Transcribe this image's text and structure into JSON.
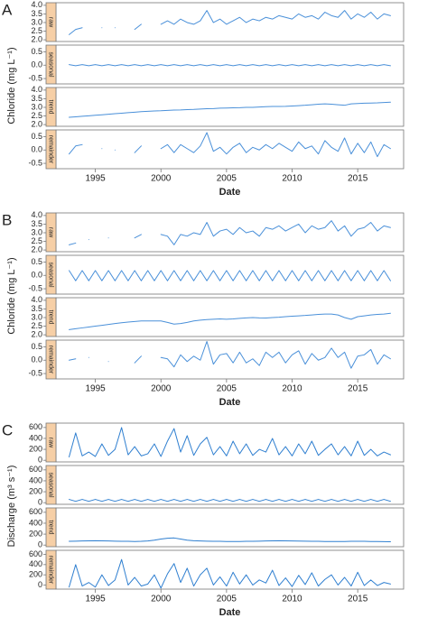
{
  "chart_data": [
    {
      "type": "line",
      "panel_label": "A",
      "ylabel": "Chloride (mg L⁻¹)",
      "xlabel": "Date",
      "x": [
        1993,
        1993.5,
        1994,
        1994.5,
        1995,
        1995.5,
        1996,
        1996.5,
        1997,
        1997.5,
        1998,
        1998.5,
        1999,
        1999.5,
        2000,
        2000.5,
        2001,
        2001.5,
        2002,
        2002.5,
        2003,
        2003.5,
        2004,
        2004.5,
        2005,
        2005.5,
        2006,
        2006.5,
        2007,
        2007.5,
        2008,
        2008.5,
        2009,
        2009.5,
        2010,
        2010.5,
        2011,
        2011.5,
        2012,
        2012.5,
        2013,
        2013.5,
        2014,
        2014.5,
        2015,
        2015.5,
        2016,
        2016.5,
        2017,
        2017.5
      ],
      "xlim": [
        1992,
        2018.5
      ],
      "xticks": [
        1995,
        2000,
        2005,
        2010,
        2015
      ],
      "series": [
        {
          "name": "raw",
          "color": "#4a90d9",
          "ylim": [
            1.9,
            4.15
          ],
          "yticks": [
            {
              "value": 2,
              "label": "2.0"
            },
            2.5,
            {
              "value": 3,
              "label": "3.0"
            },
            3.5,
            {
              "value": 4,
              "label": "4.0"
            }
          ],
          "values": [
            2.3,
            2.6,
            2.7,
            null,
            null,
            2.7,
            null,
            2.7,
            null,
            null,
            2.6,
            2.9,
            null,
            null,
            2.9,
            3.1,
            2.9,
            3.2,
            3.0,
            2.9,
            3.1,
            3.7,
            3.0,
            3.2,
            2.9,
            3.1,
            3.3,
            3.0,
            3.2,
            3.1,
            3.3,
            3.2,
            3.4,
            3.3,
            3.2,
            3.5,
            3.3,
            3.4,
            3.2,
            3.6,
            3.4,
            3.3,
            3.7,
            3.2,
            3.5,
            3.3,
            3.6,
            3.2,
            3.5,
            3.4
          ]
        },
        {
          "name": "seasonal",
          "color": "#4a90d9",
          "ylim": [
            -0.7,
            0.75
          ],
          "yticks": [
            -0.5,
            {
              "value": 0,
              "label": "0.0"
            },
            0.5
          ],
          "values": [
            0.02,
            -0.02,
            0.02,
            -0.02,
            0.02,
            -0.02,
            0.02,
            -0.02,
            0.02,
            -0.02,
            0.02,
            -0.02,
            0.02,
            -0.02,
            0.02,
            -0.02,
            0.02,
            -0.02,
            0.02,
            -0.02,
            0.02,
            -0.02,
            0.02,
            -0.02,
            0.02,
            -0.02,
            0.02,
            -0.02,
            0.02,
            -0.02,
            0.02,
            -0.02,
            0.02,
            -0.02,
            0.02,
            -0.02,
            0.02,
            -0.02,
            0.02,
            -0.02,
            0.02,
            -0.02,
            0.02,
            -0.02,
            0.02,
            -0.02,
            0.02,
            -0.02,
            0.02,
            -0.02
          ]
        },
        {
          "name": "trend",
          "color": "#4a90d9",
          "ylim": [
            1.9,
            4.15
          ],
          "yticks": [
            {
              "value": 2,
              "label": "2.0"
            },
            2.5,
            {
              "value": 3,
              "label": "3.0"
            },
            3.5,
            {
              "value": 4,
              "label": "4.0"
            }
          ],
          "values": [
            2.42,
            2.45,
            2.48,
            2.51,
            2.54,
            2.57,
            2.6,
            2.63,
            2.66,
            2.69,
            2.72,
            2.75,
            2.77,
            2.79,
            2.8,
            2.82,
            2.84,
            2.85,
            2.87,
            2.88,
            2.9,
            2.92,
            2.93,
            2.95,
            2.96,
            2.97,
            2.98,
            3.0,
            3.0,
            3.02,
            3.04,
            3.05,
            3.05,
            3.06,
            3.08,
            3.1,
            3.12,
            3.15,
            3.18,
            3.2,
            3.18,
            3.15,
            3.12,
            3.2,
            3.22,
            3.24,
            3.25,
            3.26,
            3.28,
            3.3
          ]
        },
        {
          "name": "remainder",
          "color": "#4a90d9",
          "ylim": [
            -0.7,
            0.75
          ],
          "yticks": [
            -0.5,
            {
              "value": 0,
              "label": "0.0"
            },
            0.5
          ],
          "values": [
            -0.15,
            0.15,
            0.2,
            null,
            null,
            0.05,
            null,
            0,
            null,
            null,
            -0.1,
            0.15,
            null,
            null,
            0.05,
            0.2,
            -0.1,
            0.2,
            0.05,
            -0.1,
            0.15,
            0.65,
            -0.05,
            0.1,
            -0.15,
            0.1,
            0.25,
            -0.1,
            0.1,
            0,
            0.2,
            0.05,
            0.25,
            0.1,
            -0.05,
            0.3,
            0.05,
            0.15,
            -0.15,
            0.35,
            0.1,
            -0.05,
            0.45,
            -0.15,
            0.25,
            -0.1,
            0.3,
            -0.25,
            0.2,
            0.05
          ]
        }
      ]
    },
    {
      "type": "line",
      "panel_label": "B",
      "ylabel": "Chloride (mg L⁻¹)",
      "xlabel": "Date",
      "x": [
        1993,
        1993.5,
        1994,
        1994.5,
        1995,
        1995.5,
        1996,
        1996.5,
        1997,
        1997.5,
        1998,
        1998.5,
        1999,
        1999.5,
        2000,
        2000.5,
        2001,
        2001.5,
        2002,
        2002.5,
        2003,
        2003.5,
        2004,
        2004.5,
        2005,
        2005.5,
        2006,
        2006.5,
        2007,
        2007.5,
        2008,
        2008.5,
        2009,
        2009.5,
        2010,
        2010.5,
        2011,
        2011.5,
        2012,
        2012.5,
        2013,
        2013.5,
        2014,
        2014.5,
        2015,
        2015.5,
        2016,
        2016.5,
        2017,
        2017.5
      ],
      "xlim": [
        1992,
        2018.5
      ],
      "xticks": [
        1995,
        2000,
        2005,
        2010,
        2015
      ],
      "series": [
        {
          "name": "raw",
          "color": "#4a90d9",
          "ylim": [
            1.9,
            4.15
          ],
          "yticks": [
            {
              "value": 2,
              "label": "2.0"
            },
            2.5,
            {
              "value": 3,
              "label": "3.0"
            },
            3.5,
            {
              "value": 4,
              "label": "4.0"
            }
          ],
          "values": [
            2.3,
            2.4,
            null,
            2.6,
            null,
            null,
            2.7,
            null,
            null,
            null,
            2.7,
            2.9,
            null,
            null,
            2.9,
            2.8,
            2.3,
            2.9,
            2.8,
            3.0,
            2.9,
            3.6,
            2.8,
            3.1,
            3.2,
            2.9,
            3.3,
            3.0,
            3.1,
            2.8,
            3.3,
            3.2,
            3.4,
            3.1,
            3.3,
            3.5,
            3.0,
            3.4,
            3.2,
            3.3,
            3.7,
            3.1,
            3.4,
            2.8,
            3.2,
            3.3,
            3.6,
            3.1,
            3.4,
            3.3
          ]
        },
        {
          "name": "seasonal",
          "color": "#4a90d9",
          "ylim": [
            -0.7,
            0.75
          ],
          "yticks": [
            -0.5,
            {
              "value": 0,
              "label": "0.0"
            },
            0.5
          ],
          "values": [
            0.18,
            -0.2,
            0.18,
            -0.2,
            0.18,
            -0.2,
            0.18,
            -0.2,
            0.18,
            -0.2,
            0.18,
            -0.2,
            0.18,
            -0.2,
            0.18,
            -0.2,
            0.18,
            -0.2,
            0.18,
            -0.2,
            0.18,
            -0.2,
            0.18,
            -0.2,
            0.18,
            -0.2,
            0.18,
            -0.2,
            0.18,
            -0.2,
            0.18,
            -0.2,
            0.18,
            -0.2,
            0.18,
            -0.2,
            0.18,
            -0.2,
            0.18,
            -0.2,
            0.18,
            -0.2,
            0.18,
            -0.2,
            0.18,
            -0.2,
            0.18,
            -0.2,
            0.18,
            -0.2
          ]
        },
        {
          "name": "trend",
          "color": "#4a90d9",
          "ylim": [
            1.9,
            4.15
          ],
          "yticks": [
            {
              "value": 2,
              "label": "2.0"
            },
            2.5,
            {
              "value": 3,
              "label": "3.0"
            },
            3.5,
            {
              "value": 4,
              "label": "4.0"
            }
          ],
          "values": [
            2.3,
            2.35,
            2.4,
            2.45,
            2.5,
            2.55,
            2.6,
            2.65,
            2.7,
            2.74,
            2.77,
            2.8,
            2.8,
            2.8,
            2.8,
            2.72,
            2.62,
            2.65,
            2.72,
            2.8,
            2.85,
            2.88,
            2.9,
            2.92,
            2.9,
            2.92,
            2.95,
            2.98,
            3.0,
            2.98,
            2.97,
            3.0,
            3.02,
            3.05,
            3.08,
            3.1,
            3.12,
            3.15,
            3.18,
            3.2,
            3.2,
            3.15,
            3.0,
            2.9,
            3.05,
            3.1,
            3.15,
            3.18,
            3.2,
            3.25
          ]
        },
        {
          "name": "remainder",
          "color": "#4a90d9",
          "ylim": [
            -0.7,
            0.75
          ],
          "yticks": [
            -0.5,
            {
              "value": 0,
              "label": "0.0"
            },
            0.5
          ],
          "values": [
            0,
            0.05,
            null,
            0.1,
            null,
            null,
            -0.05,
            null,
            null,
            null,
            -0.1,
            0.15,
            null,
            null,
            0.1,
            0.05,
            -0.25,
            0.2,
            -0.05,
            0.15,
            0,
            0.7,
            -0.15,
            0.2,
            0.25,
            -0.1,
            0.3,
            -0.1,
            0.05,
            -0.2,
            0.3,
            0.1,
            0.3,
            -0.1,
            0.2,
            0.35,
            -0.15,
            0.25,
            0,
            0.1,
            0.45,
            0.1,
            0.3,
            -0.3,
            0.15,
            0.2,
            0.4,
            -0.15,
            0.2,
            0.05
          ]
        }
      ]
    },
    {
      "type": "line",
      "panel_label": "C",
      "ylabel": "Discharge (m³ s⁻¹)",
      "xlabel": "Date",
      "x": [
        1993,
        1993.5,
        1994,
        1994.5,
        1995,
        1995.5,
        1996,
        1996.5,
        1997,
        1997.5,
        1998,
        1998.5,
        1999,
        1999.5,
        2000,
        2000.5,
        2001,
        2001.5,
        2002,
        2002.5,
        2003,
        2003.5,
        2004,
        2004.5,
        2005,
        2005.5,
        2006,
        2006.5,
        2007,
        2007.5,
        2008,
        2008.5,
        2009,
        2009.5,
        2010,
        2010.5,
        2011,
        2011.5,
        2012,
        2012.5,
        2013,
        2013.5,
        2014,
        2014.5,
        2015,
        2015.5,
        2016,
        2016.5,
        2017,
        2017.5
      ],
      "xlim": [
        1992,
        2018.5
      ],
      "xticks": [
        1995,
        2000,
        2005,
        2010,
        2015
      ],
      "series": [
        {
          "name": "raw",
          "color": "#2f7fd0",
          "ylim": [
            -30,
            680
          ],
          "yticks": [
            0,
            200,
            400,
            600
          ],
          "values": [
            60,
            500,
            80,
            150,
            70,
            300,
            90,
            200,
            600,
            100,
            250,
            80,
            120,
            300,
            70,
            350,
            580,
            150,
            450,
            90,
            300,
            420,
            100,
            250,
            80,
            350,
            120,
            300,
            90,
            200,
            150,
            400,
            100,
            250,
            80,
            300,
            120,
            350,
            90,
            200,
            300,
            100,
            250,
            80,
            350,
            90,
            200,
            80,
            150,
            100
          ]
        },
        {
          "name": "seasonal",
          "color": "#2f7fd0",
          "ylim": [
            -30,
            680
          ],
          "yticks": [
            0,
            200,
            400,
            600
          ],
          "values": [
            60,
            25,
            60,
            25,
            60,
            25,
            60,
            25,
            60,
            25,
            60,
            25,
            60,
            25,
            60,
            25,
            60,
            25,
            60,
            25,
            60,
            25,
            60,
            25,
            60,
            25,
            60,
            25,
            60,
            25,
            60,
            25,
            60,
            25,
            60,
            25,
            60,
            25,
            60,
            25,
            60,
            25,
            60,
            25,
            60,
            25,
            60,
            25,
            60,
            25
          ]
        },
        {
          "name": "trend",
          "color": "#2f7fd0",
          "ylim": [
            -30,
            680
          ],
          "yticks": [
            0,
            200,
            400,
            600
          ],
          "values": [
            70,
            72,
            75,
            78,
            80,
            78,
            75,
            72,
            70,
            68,
            65,
            68,
            75,
            90,
            110,
            125,
            130,
            110,
            90,
            80,
            75,
            72,
            70,
            68,
            66,
            65,
            66,
            68,
            70,
            72,
            75,
            78,
            80,
            78,
            76,
            74,
            72,
            70,
            68,
            66,
            65,
            64,
            66,
            68,
            70,
            68,
            66,
            64,
            62,
            60
          ]
        },
        {
          "name": "remainder",
          "color": "#2f7fd0",
          "ylim": [
            -80,
            680
          ],
          "yticks": [
            0,
            200,
            400,
            600
          ],
          "values": [
            -40,
            400,
            -20,
            50,
            -40,
            200,
            -10,
            100,
            500,
            0,
            150,
            -20,
            20,
            200,
            -60,
            220,
            420,
            50,
            330,
            -20,
            200,
            330,
            0,
            160,
            -20,
            250,
            20,
            200,
            0,
            100,
            40,
            290,
            -10,
            140,
            -30,
            190,
            10,
            240,
            -20,
            110,
            200,
            0,
            150,
            -20,
            250,
            -10,
            100,
            -10,
            50,
            20
          ]
        }
      ]
    }
  ]
}
